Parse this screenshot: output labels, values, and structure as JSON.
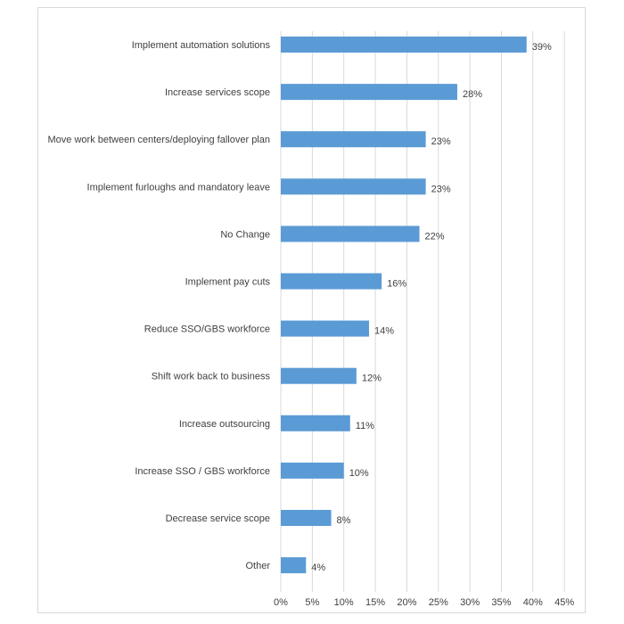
{
  "chart_data": {
    "type": "bar",
    "orientation": "horizontal",
    "categories": [
      "Implement automation solutions",
      "Increase services scope",
      "Move work between centers/deploying fallover plan",
      "Implement furloughs and mandatory leave",
      "No Change",
      "Implement pay cuts",
      "Reduce SSO/GBS workforce",
      "Shift work back to business",
      "Increase outsourcing",
      "Increase SSO / GBS workforce",
      "Decrease service scope",
      "Other"
    ],
    "values": [
      39,
      28,
      23,
      23,
      22,
      16,
      14,
      12,
      11,
      10,
      8,
      4
    ],
    "data_labels": [
      "39%",
      "28%",
      "23%",
      "23%",
      "22%",
      "16%",
      "14%",
      "12%",
      "11%",
      "10%",
      "8%",
      "4%"
    ],
    "xlim": [
      0,
      45
    ],
    "x_ticks": [
      "0%",
      "5%",
      "10%",
      "15%",
      "20%",
      "25%",
      "30%",
      "35%",
      "40%",
      "45%"
    ],
    "bar_color": "#5b9bd5",
    "grid": "vertical",
    "title": "",
    "xlabel": "",
    "ylabel": ""
  }
}
